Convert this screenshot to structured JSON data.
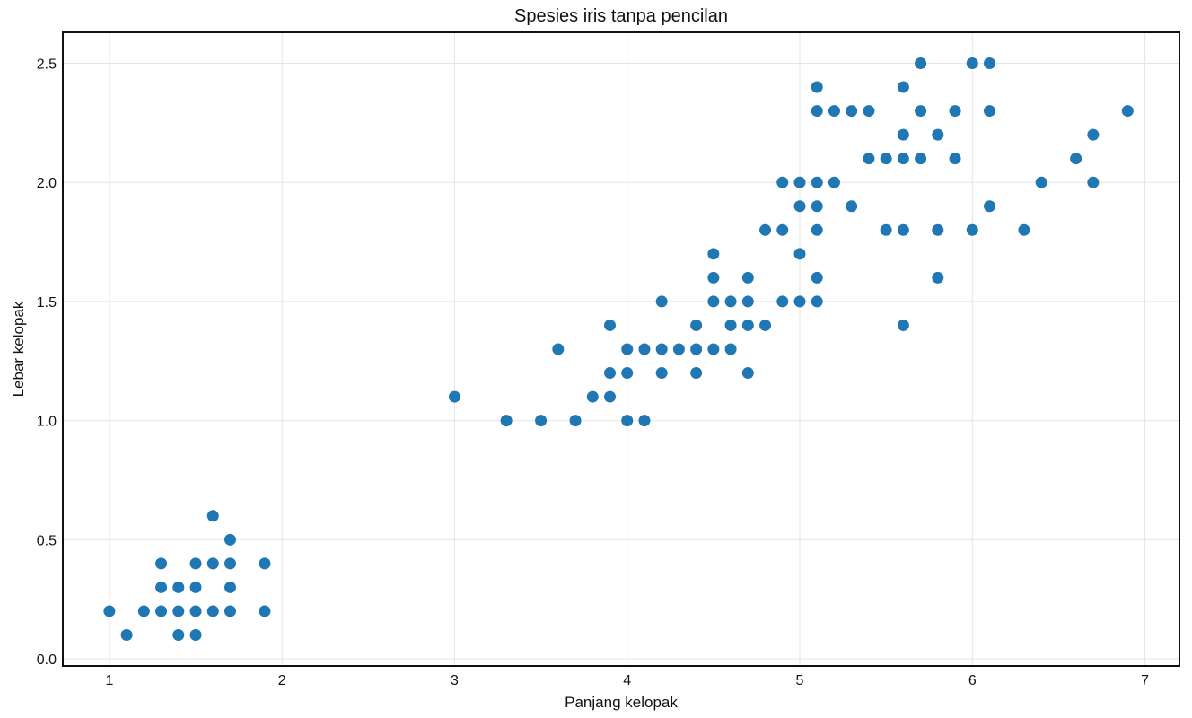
{
  "chart_data": {
    "type": "scatter",
    "title": "Spesies iris tanpa pencilan",
    "xlabel": "Panjang kelopak",
    "ylabel": "Lebar kelopak",
    "xlim": [
      0.73,
      7.2
    ],
    "ylim": [
      -0.03,
      2.63
    ],
    "xticks": [
      1,
      2,
      3,
      4,
      5,
      6,
      7
    ],
    "xtick_labels": [
      "1",
      "2",
      "3",
      "4",
      "5",
      "6",
      "7"
    ],
    "yticks": [
      0.0,
      0.5,
      1.0,
      1.5,
      2.0,
      2.5
    ],
    "ytick_labels": [
      "0.0",
      "0.5",
      "1.0",
      "1.5",
      "2.0",
      "2.5"
    ],
    "grid": true,
    "marker_color": "#1f77b4",
    "points": [
      [
        1.0,
        0.2
      ],
      [
        1.1,
        0.1
      ],
      [
        1.2,
        0.2
      ],
      [
        1.3,
        0.2
      ],
      [
        1.3,
        0.3
      ],
      [
        1.3,
        0.4
      ],
      [
        1.4,
        0.1
      ],
      [
        1.4,
        0.2
      ],
      [
        1.4,
        0.3
      ],
      [
        1.5,
        0.1
      ],
      [
        1.5,
        0.2
      ],
      [
        1.5,
        0.3
      ],
      [
        1.5,
        0.4
      ],
      [
        1.6,
        0.2
      ],
      [
        1.6,
        0.4
      ],
      [
        1.6,
        0.6
      ],
      [
        1.7,
        0.2
      ],
      [
        1.7,
        0.3
      ],
      [
        1.7,
        0.4
      ],
      [
        1.7,
        0.5
      ],
      [
        1.9,
        0.2
      ],
      [
        1.9,
        0.4
      ],
      [
        3.0,
        1.1
      ],
      [
        3.3,
        1.0
      ],
      [
        3.5,
        1.0
      ],
      [
        3.6,
        1.3
      ],
      [
        3.7,
        1.0
      ],
      [
        3.8,
        1.1
      ],
      [
        3.9,
        1.1
      ],
      [
        3.9,
        1.2
      ],
      [
        3.9,
        1.4
      ],
      [
        4.0,
        1.0
      ],
      [
        4.0,
        1.2
      ],
      [
        4.0,
        1.3
      ],
      [
        4.1,
        1.0
      ],
      [
        4.1,
        1.3
      ],
      [
        4.2,
        1.2
      ],
      [
        4.2,
        1.3
      ],
      [
        4.2,
        1.5
      ],
      [
        4.3,
        1.3
      ],
      [
        4.4,
        1.2
      ],
      [
        4.4,
        1.3
      ],
      [
        4.4,
        1.4
      ],
      [
        4.5,
        1.3
      ],
      [
        4.5,
        1.5
      ],
      [
        4.5,
        1.6
      ],
      [
        4.5,
        1.7
      ],
      [
        4.6,
        1.3
      ],
      [
        4.6,
        1.4
      ],
      [
        4.6,
        1.5
      ],
      [
        4.7,
        1.2
      ],
      [
        4.7,
        1.4
      ],
      [
        4.7,
        1.5
      ],
      [
        4.7,
        1.6
      ],
      [
        4.8,
        1.4
      ],
      [
        4.8,
        1.8
      ],
      [
        4.9,
        1.5
      ],
      [
        4.9,
        1.8
      ],
      [
        4.9,
        2.0
      ],
      [
        5.0,
        1.5
      ],
      [
        5.0,
        1.7
      ],
      [
        5.0,
        1.9
      ],
      [
        5.0,
        2.0
      ],
      [
        5.1,
        1.5
      ],
      [
        5.1,
        1.6
      ],
      [
        5.1,
        1.8
      ],
      [
        5.1,
        1.9
      ],
      [
        5.1,
        2.0
      ],
      [
        5.1,
        2.3
      ],
      [
        5.1,
        2.4
      ],
      [
        5.2,
        2.0
      ],
      [
        5.2,
        2.3
      ],
      [
        5.3,
        1.9
      ],
      [
        5.3,
        2.3
      ],
      [
        5.4,
        2.1
      ],
      [
        5.4,
        2.3
      ],
      [
        5.5,
        1.8
      ],
      [
        5.5,
        2.1
      ],
      [
        5.6,
        1.4
      ],
      [
        5.6,
        1.8
      ],
      [
        5.6,
        2.1
      ],
      [
        5.6,
        2.2
      ],
      [
        5.6,
        2.4
      ],
      [
        5.7,
        2.1
      ],
      [
        5.7,
        2.3
      ],
      [
        5.7,
        2.5
      ],
      [
        5.8,
        1.6
      ],
      [
        5.8,
        1.8
      ],
      [
        5.8,
        2.2
      ],
      [
        5.9,
        2.1
      ],
      [
        5.9,
        2.3
      ],
      [
        6.0,
        1.8
      ],
      [
        6.0,
        2.5
      ],
      [
        6.1,
        1.9
      ],
      [
        6.1,
        2.3
      ],
      [
        6.1,
        2.5
      ],
      [
        6.3,
        1.8
      ],
      [
        6.4,
        2.0
      ],
      [
        6.6,
        2.1
      ],
      [
        6.7,
        2.0
      ],
      [
        6.7,
        2.2
      ],
      [
        6.9,
        2.3
      ]
    ]
  }
}
